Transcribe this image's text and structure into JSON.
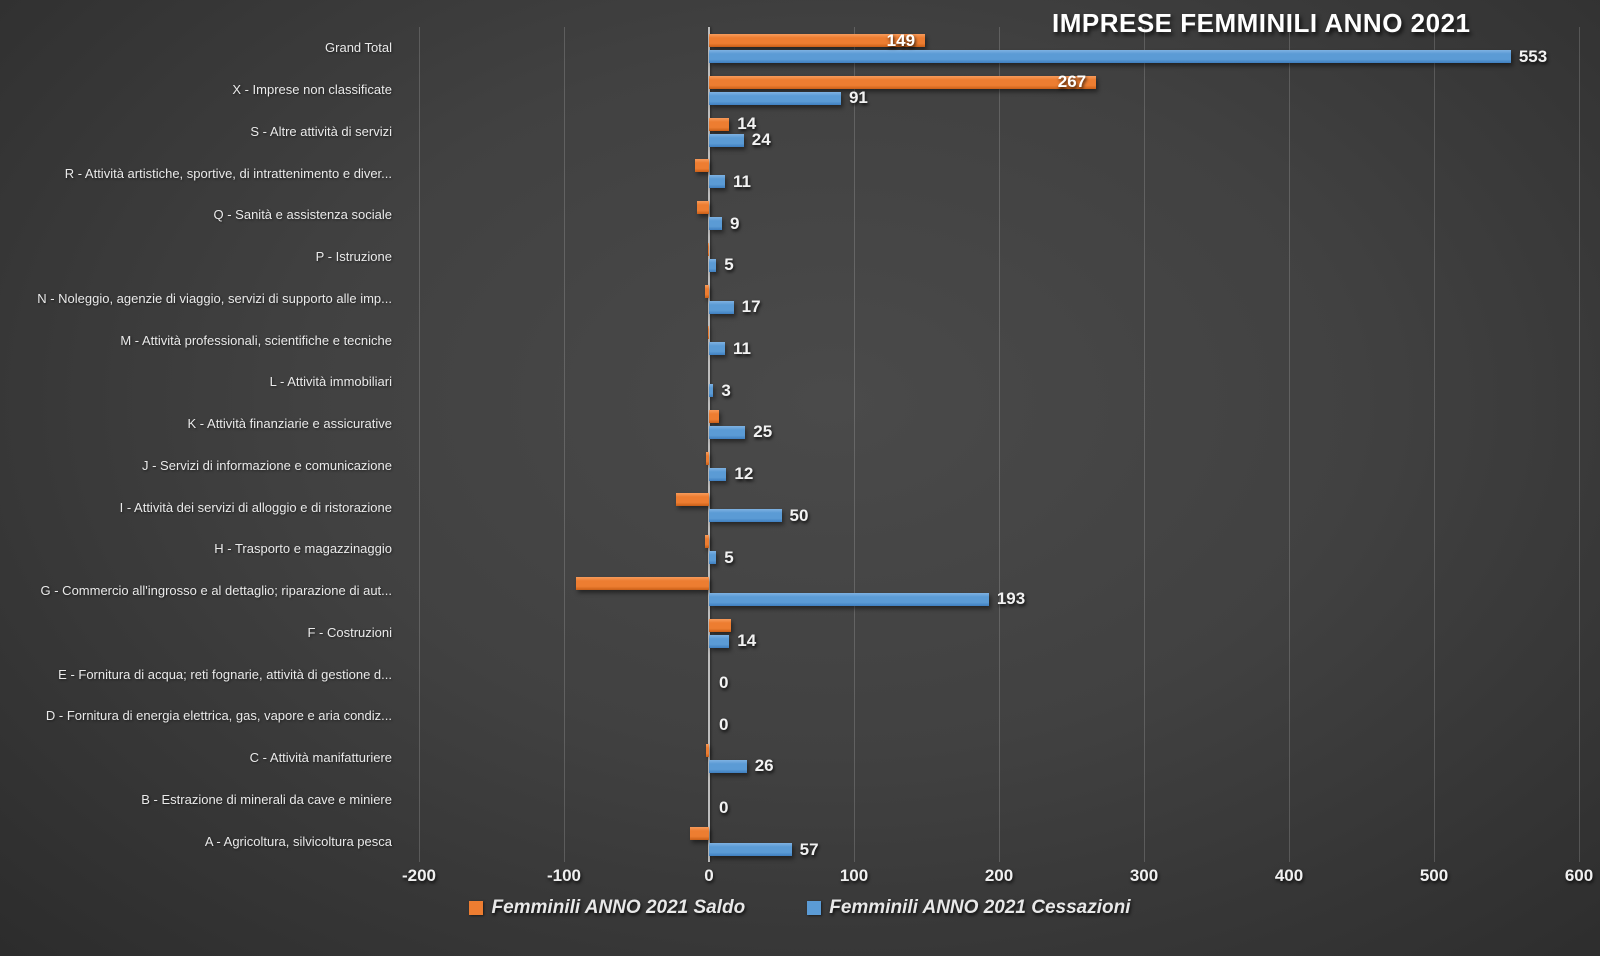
{
  "title": "IMPRESE FEMMINILI ANNO 2021",
  "colors": {
    "saldo": "#ED7D31",
    "cessazioni": "#5B9BD5",
    "background": "#404040",
    "text": "#F2F2F2",
    "gridline": "#5A5A5A",
    "axis_line": "#BDBDBD"
  },
  "legend": [
    {
      "label": "Femminili ANNO 2021 Saldo",
      "color": "#ED7D31"
    },
    {
      "label": "Femminili ANNO 2021 Cessazioni",
      "color": "#5B9BD5"
    }
  ],
  "chart_data": {
    "type": "bar",
    "orientation": "horizontal",
    "title": "IMPRESE FEMMINILI ANNO 2021",
    "xlim": [
      -200,
      600
    ],
    "x_ticks": [
      -200,
      -100,
      0,
      100,
      200,
      300,
      400,
      500,
      600
    ],
    "grid": true,
    "legend_position": "bottom",
    "categories": [
      "Grand Total",
      "X - Imprese non classificate",
      "S - Altre attività di servizi",
      "R -  Attività artistiche, sportive, di intrattenimento e diver...",
      "Q - Sanità e assistenza sociale",
      "P - Istruzione",
      "N - Noleggio, agenzie di viaggio, servizi di supporto alle imp...",
      "M - Attività professionali, scientifiche e tecniche",
      "L - Attività immobiliari",
      "K - Attività finanziarie e assicurative",
      "J - Servizi di informazione e comunicazione",
      "I - Attività dei servizi di alloggio e di ristorazione",
      "H - Trasporto e magazzinaggio",
      "G - Commercio all'ingrosso e al dettaglio; riparazione di aut...",
      "F - Costruzioni",
      "E - Fornitura di acqua; reti fognarie, attività di gestione d...",
      "D - Fornitura di energia elettrica, gas, vapore e aria condiz...",
      "C - Attività manifatturiere",
      "B - Estrazione di minerali da cave e miniere",
      "A - Agricoltura, silvicoltura pesca"
    ],
    "series": [
      {
        "name": "Femminili ANNO 2021 Saldo",
        "color": "#ED7D31",
        "values": [
          149,
          267,
          14,
          -10,
          -8,
          -1,
          -3,
          -1,
          0,
          7,
          -2,
          -23,
          -3,
          -92,
          15,
          0,
          0,
          -2,
          0,
          -13
        ],
        "note": "only 149, 267 and 14 have visible data labels; other values estimated from bar lengths"
      },
      {
        "name": "Femminili ANNO 2021 Cessazioni",
        "color": "#5B9BD5",
        "values": [
          553,
          91,
          24,
          11,
          9,
          5,
          17,
          11,
          3,
          25,
          12,
          50,
          5,
          193,
          14,
          0,
          0,
          26,
          0,
          57
        ]
      }
    ],
    "rows": [
      {
        "category": "Grand Total",
        "saldo": 149,
        "cessazioni": 553,
        "saldo_label": "149",
        "saldo_label_pos": "inside",
        "cess_label": "553"
      },
      {
        "category": "X - Imprese non classificate",
        "saldo": 267,
        "cessazioni": 91,
        "saldo_label": "267",
        "saldo_label_pos": "inside",
        "cess_label": "91"
      },
      {
        "category": "S - Altre attività di servizi",
        "saldo": 14,
        "cessazioni": 24,
        "saldo_label": "14",
        "saldo_label_pos": "outside",
        "cess_label": "24"
      },
      {
        "category": "R -  Attività artistiche, sportive, di intrattenimento e diver...",
        "saldo": -10,
        "cessazioni": 11,
        "cess_label": "11"
      },
      {
        "category": "Q - Sanità e assistenza sociale",
        "saldo": -8,
        "cessazioni": 9,
        "cess_label": "9"
      },
      {
        "category": "P - Istruzione",
        "saldo": -1,
        "cessazioni": 5,
        "cess_label": "5"
      },
      {
        "category": "N - Noleggio, agenzie di viaggio, servizi di supporto alle imp...",
        "saldo": -3,
        "cessazioni": 17,
        "cess_label": "17"
      },
      {
        "category": "M - Attività professionali, scientifiche e tecniche",
        "saldo": -1,
        "cessazioni": 11,
        "cess_label": "11"
      },
      {
        "category": "L - Attività immobiliari",
        "saldo": 0,
        "cessazioni": 3,
        "cess_label": "3"
      },
      {
        "category": "K - Attività finanziarie e assicurative",
        "saldo": 7,
        "cessazioni": 25,
        "cess_label": "25"
      },
      {
        "category": "J - Servizi di informazione e comunicazione",
        "saldo": -2,
        "cessazioni": 12,
        "cess_label": "12"
      },
      {
        "category": "I - Attività dei servizi di alloggio e di ristorazione",
        "saldo": -23,
        "cessazioni": 50,
        "cess_label": "50"
      },
      {
        "category": "H - Trasporto e magazzinaggio",
        "saldo": -3,
        "cessazioni": 5,
        "cess_label": "5"
      },
      {
        "category": "G - Commercio all'ingrosso e al dettaglio; riparazione di aut...",
        "saldo": -92,
        "cessazioni": 193,
        "cess_label": "193"
      },
      {
        "category": "F - Costruzioni",
        "saldo": 15,
        "cessazioni": 14,
        "cess_label": "14"
      },
      {
        "category": "E - Fornitura di acqua; reti fognarie, attività di gestione d...",
        "saldo": 0,
        "cessazioni": 0,
        "cess_label": "0"
      },
      {
        "category": "D - Fornitura di energia elettrica, gas, vapore e aria condiz...",
        "saldo": 0,
        "cessazioni": 0,
        "cess_label": "0"
      },
      {
        "category": "C - Attività manifatturiere",
        "saldo": -2,
        "cessazioni": 26,
        "cess_label": "26"
      },
      {
        "category": "B - Estrazione di minerali da cave e miniere",
        "saldo": 0,
        "cessazioni": 0,
        "cess_label": "0"
      },
      {
        "category": "A - Agricoltura, silvicoltura pesca",
        "saldo": -13,
        "cessazioni": 57,
        "cess_label": "57"
      }
    ]
  }
}
